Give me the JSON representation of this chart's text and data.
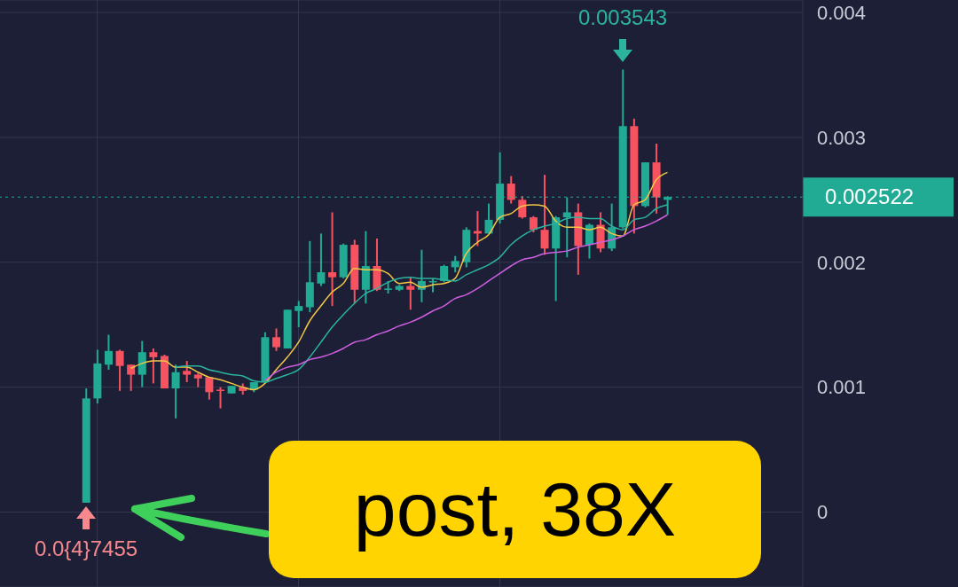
{
  "chart_data": {
    "type": "candlestick",
    "categories": [
      null,
      null,
      null,
      null,
      null,
      null,
      null,
      null,
      null,
      null,
      null,
      null,
      null,
      null,
      null,
      null,
      null,
      null,
      null,
      null,
      null,
      null,
      null,
      null,
      null,
      null,
      null,
      null,
      null,
      null,
      null,
      null,
      null,
      null,
      null,
      null,
      null,
      null,
      null,
      null,
      null,
      null,
      null,
      null,
      null,
      null,
      null,
      null,
      null,
      null,
      null,
      null,
      null
    ],
    "ohlc": [
      [
        7.5e-05,
        0.00099,
        7.455e-05,
        0.00091
      ],
      [
        0.00091,
        0.0013,
        0.00087,
        0.00119
      ],
      [
        0.00118,
        0.00142,
        0.00114,
        0.00129
      ],
      [
        0.00129,
        0.0013,
        0.00097,
        0.00117
      ],
      [
        0.00118,
        0.00118,
        0.00097,
        0.0011
      ],
      [
        0.0011,
        0.00137,
        0.001,
        0.00128
      ],
      [
        0.00128,
        0.00131,
        0.00103,
        0.00124
      ],
      [
        0.00125,
        0.00126,
        0.00099,
        0.00099
      ],
      [
        0.00099,
        0.00118,
        0.00075,
        0.00112
      ],
      [
        0.00113,
        0.00121,
        0.00104,
        0.0011
      ],
      [
        0.0011,
        0.00111,
        0.001,
        0.00107
      ],
      [
        0.00108,
        0.00108,
        0.0009,
        0.00096
      ],
      [
        0.00098,
        0.001,
        0.00083,
        0.00097
      ],
      [
        0.00095,
        0.00101,
        0.00095,
        0.00101
      ],
      [
        0.001,
        0.00103,
        0.00094,
        0.00097
      ],
      [
        0.00098,
        0.00104,
        0.00096,
        0.00104
      ],
      [
        0.00104,
        0.00144,
        0.00103,
        0.0014
      ],
      [
        0.0014,
        0.00147,
        0.00129,
        0.00132
      ],
      [
        0.00131,
        0.00162,
        0.00131,
        0.00162
      ],
      [
        0.00161,
        0.00169,
        0.00148,
        0.00165
      ],
      [
        0.00164,
        0.00217,
        0.0016,
        0.00184
      ],
      [
        0.00183,
        0.00223,
        0.00181,
        0.00192
      ],
      [
        0.00192,
        0.0024,
        0.00165,
        0.00188
      ],
      [
        0.00188,
        0.00215,
        0.00187,
        0.00214
      ],
      [
        0.00214,
        0.00218,
        0.00167,
        0.00178
      ],
      [
        0.00178,
        0.00225,
        0.00167,
        0.00197
      ],
      [
        0.00197,
        0.00219,
        0.00177,
        0.00178
      ],
      [
        0.00178,
        0.00185,
        0.00175,
        0.00179
      ],
      [
        0.00178,
        0.00182,
        0.00177,
        0.00181
      ],
      [
        0.00181,
        0.00188,
        0.00162,
        0.00178
      ],
      [
        0.00178,
        0.0021,
        0.00168,
        0.00185
      ],
      [
        0.00184,
        0.00187,
        0.00176,
        0.00185
      ],
      [
        0.00185,
        0.00198,
        0.00184,
        0.00197
      ],
      [
        0.00196,
        0.00205,
        0.00192,
        0.00201
      ],
      [
        0.002,
        0.00228,
        0.00196,
        0.00226
      ],
      [
        0.00225,
        0.00241,
        0.00213,
        0.00223
      ],
      [
        0.00223,
        0.00247,
        0.00223,
        0.00234
      ],
      [
        0.00234,
        0.00288,
        0.00231,
        0.00263
      ],
      [
        0.00263,
        0.00269,
        0.00247,
        0.0025
      ],
      [
        0.0025,
        0.00253,
        0.00235,
        0.00236
      ],
      [
        0.00236,
        0.00237,
        0.00224,
        0.00226
      ],
      [
        0.00226,
        0.0027,
        0.00206,
        0.00211
      ],
      [
        0.00211,
        0.00237,
        0.00169,
        0.00236
      ],
      [
        0.00236,
        0.00252,
        0.00204,
        0.0024
      ],
      [
        0.0024,
        0.00247,
        0.0019,
        0.00213
      ],
      [
        0.00214,
        0.00231,
        0.00203,
        0.0023
      ],
      [
        0.0023,
        0.0024,
        0.00208,
        0.00211
      ],
      [
        0.00211,
        0.00247,
        0.00209,
        0.00228
      ],
      [
        0.00228,
        0.003543,
        0.00227,
        0.00309
      ],
      [
        0.00309,
        0.00315,
        0.00223,
        0.00245
      ],
      [
        0.00245,
        0.0028,
        0.00244,
        0.0028
      ],
      [
        0.0028,
        0.00295,
        0.00239,
        0.00252
      ],
      [
        0.0025,
        0.00253,
        0.00238,
        0.002522
      ]
    ],
    "colors": [
      "#22ab94",
      "#22ab94",
      "#22ab94",
      "#f7525f",
      "#f7525f",
      "#22ab94",
      "#f7525f",
      "#f7525f",
      "#22ab94",
      "#f7525f",
      "#f7525f",
      "#f7525f",
      "#f7525f",
      "#22ab94",
      "#f7525f",
      "#22ab94",
      "#22ab94",
      "#f7525f",
      "#22ab94",
      "#22ab94",
      "#22ab94",
      "#22ab94",
      "#f7525f",
      "#22ab94",
      "#f7525f",
      "#22ab94",
      "#f7525f",
      "#22ab94",
      "#22ab94",
      "#f7525f",
      "#22ab94",
      "#22ab94",
      "#22ab94",
      "#22ab94",
      "#22ab94",
      "#f7525f",
      "#22ab94",
      "#22ab94",
      "#f7525f",
      "#f7525f",
      "#f7525f",
      "#f7525f",
      "#22ab94",
      "#22ab94",
      "#f7525f",
      "#22ab94",
      "#f7525f",
      "#22ab94",
      "#22ab94",
      "#f7525f",
      "#22ab94",
      "#f7525f",
      "#22ab94"
    ],
    "series": [
      {
        "type": "line",
        "color": "#f2c744",
        "values": [
          null,
          null,
          null,
          null,
          0.00115,
          0.00119,
          0.00121,
          0.00121,
          0.00116,
          0.00116,
          0.00112,
          0.00108,
          0.00106,
          0.00103,
          0.001,
          0.00098,
          0.00103,
          0.00114,
          0.00124,
          0.00136,
          0.00153,
          0.00165,
          0.00176,
          0.00183,
          0.00195,
          0.00194,
          0.00194,
          0.00191,
          0.00183,
          0.00184,
          0.0018,
          0.00182,
          0.00183,
          0.00187,
          0.00207,
          0.00216,
          0.00222,
          0.00236,
          0.00239,
          0.00245,
          0.00246,
          0.00245,
          0.00233,
          0.00228,
          0.00228,
          0.00226,
          0.00228,
          0.00223,
          0.00221,
          0.00246,
          0.0025,
          0.00266,
          0.00272
        ]
      },
      {
        "type": "line",
        "color": "#2bb39e",
        "values": [
          null,
          null,
          null,
          null,
          null,
          null,
          null,
          null,
          0.00116,
          0.00117,
          0.00117,
          0.00114,
          0.00112,
          0.0011,
          0.00109,
          0.00105,
          0.00104,
          0.00107,
          0.0011,
          0.00114,
          0.00124,
          0.00136,
          0.00148,
          0.00158,
          0.00167,
          0.00175,
          0.00179,
          0.00184,
          0.00187,
          0.00188,
          0.00187,
          0.00187,
          0.00186,
          0.00185,
          0.0019,
          0.00194,
          0.00198,
          0.00204,
          0.00214,
          0.00221,
          0.00226,
          0.00229,
          0.00231,
          0.00235,
          0.00236,
          0.00235,
          0.00235,
          0.00229,
          0.00226,
          0.00234,
          0.00236,
          0.00243,
          0.00246
        ]
      },
      {
        "type": "line",
        "color": "#cf5fe0",
        "values": [
          null,
          null,
          null,
          null,
          null,
          null,
          null,
          null,
          null,
          null,
          null,
          null,
          null,
          null,
          null,
          null,
          0.00105,
          0.00112,
          0.00116,
          0.00118,
          0.00122,
          0.00124,
          0.00127,
          0.00131,
          0.00136,
          0.00138,
          0.00142,
          0.00145,
          0.00149,
          0.00152,
          0.00156,
          0.00161,
          0.00165,
          0.00171,
          0.00174,
          0.00179,
          0.00185,
          0.00191,
          0.00197,
          0.00202,
          0.00204,
          0.00207,
          0.00208,
          0.00209,
          0.00212,
          0.00214,
          0.00216,
          0.00218,
          0.00221,
          0.00226,
          0.00229,
          0.00233,
          0.00238
        ]
      }
    ],
    "ylim": [
      -0.0006,
      0.0041
    ],
    "yticks": [
      0,
      0.001,
      0.002,
      0.003,
      0.004
    ],
    "grid": true,
    "ref_lines": [
      {
        "axis": "y",
        "value": 0.002522,
        "label": "0.002522",
        "color": "#22ab94",
        "line_style": "dotted"
      }
    ],
    "annotations": [
      {
        "text": "0.003543",
        "y": 0.003543
      },
      {
        "text": "0.0{4}7455",
        "y": 7.455e-05
      },
      "post, 38X"
    ]
  }
}
